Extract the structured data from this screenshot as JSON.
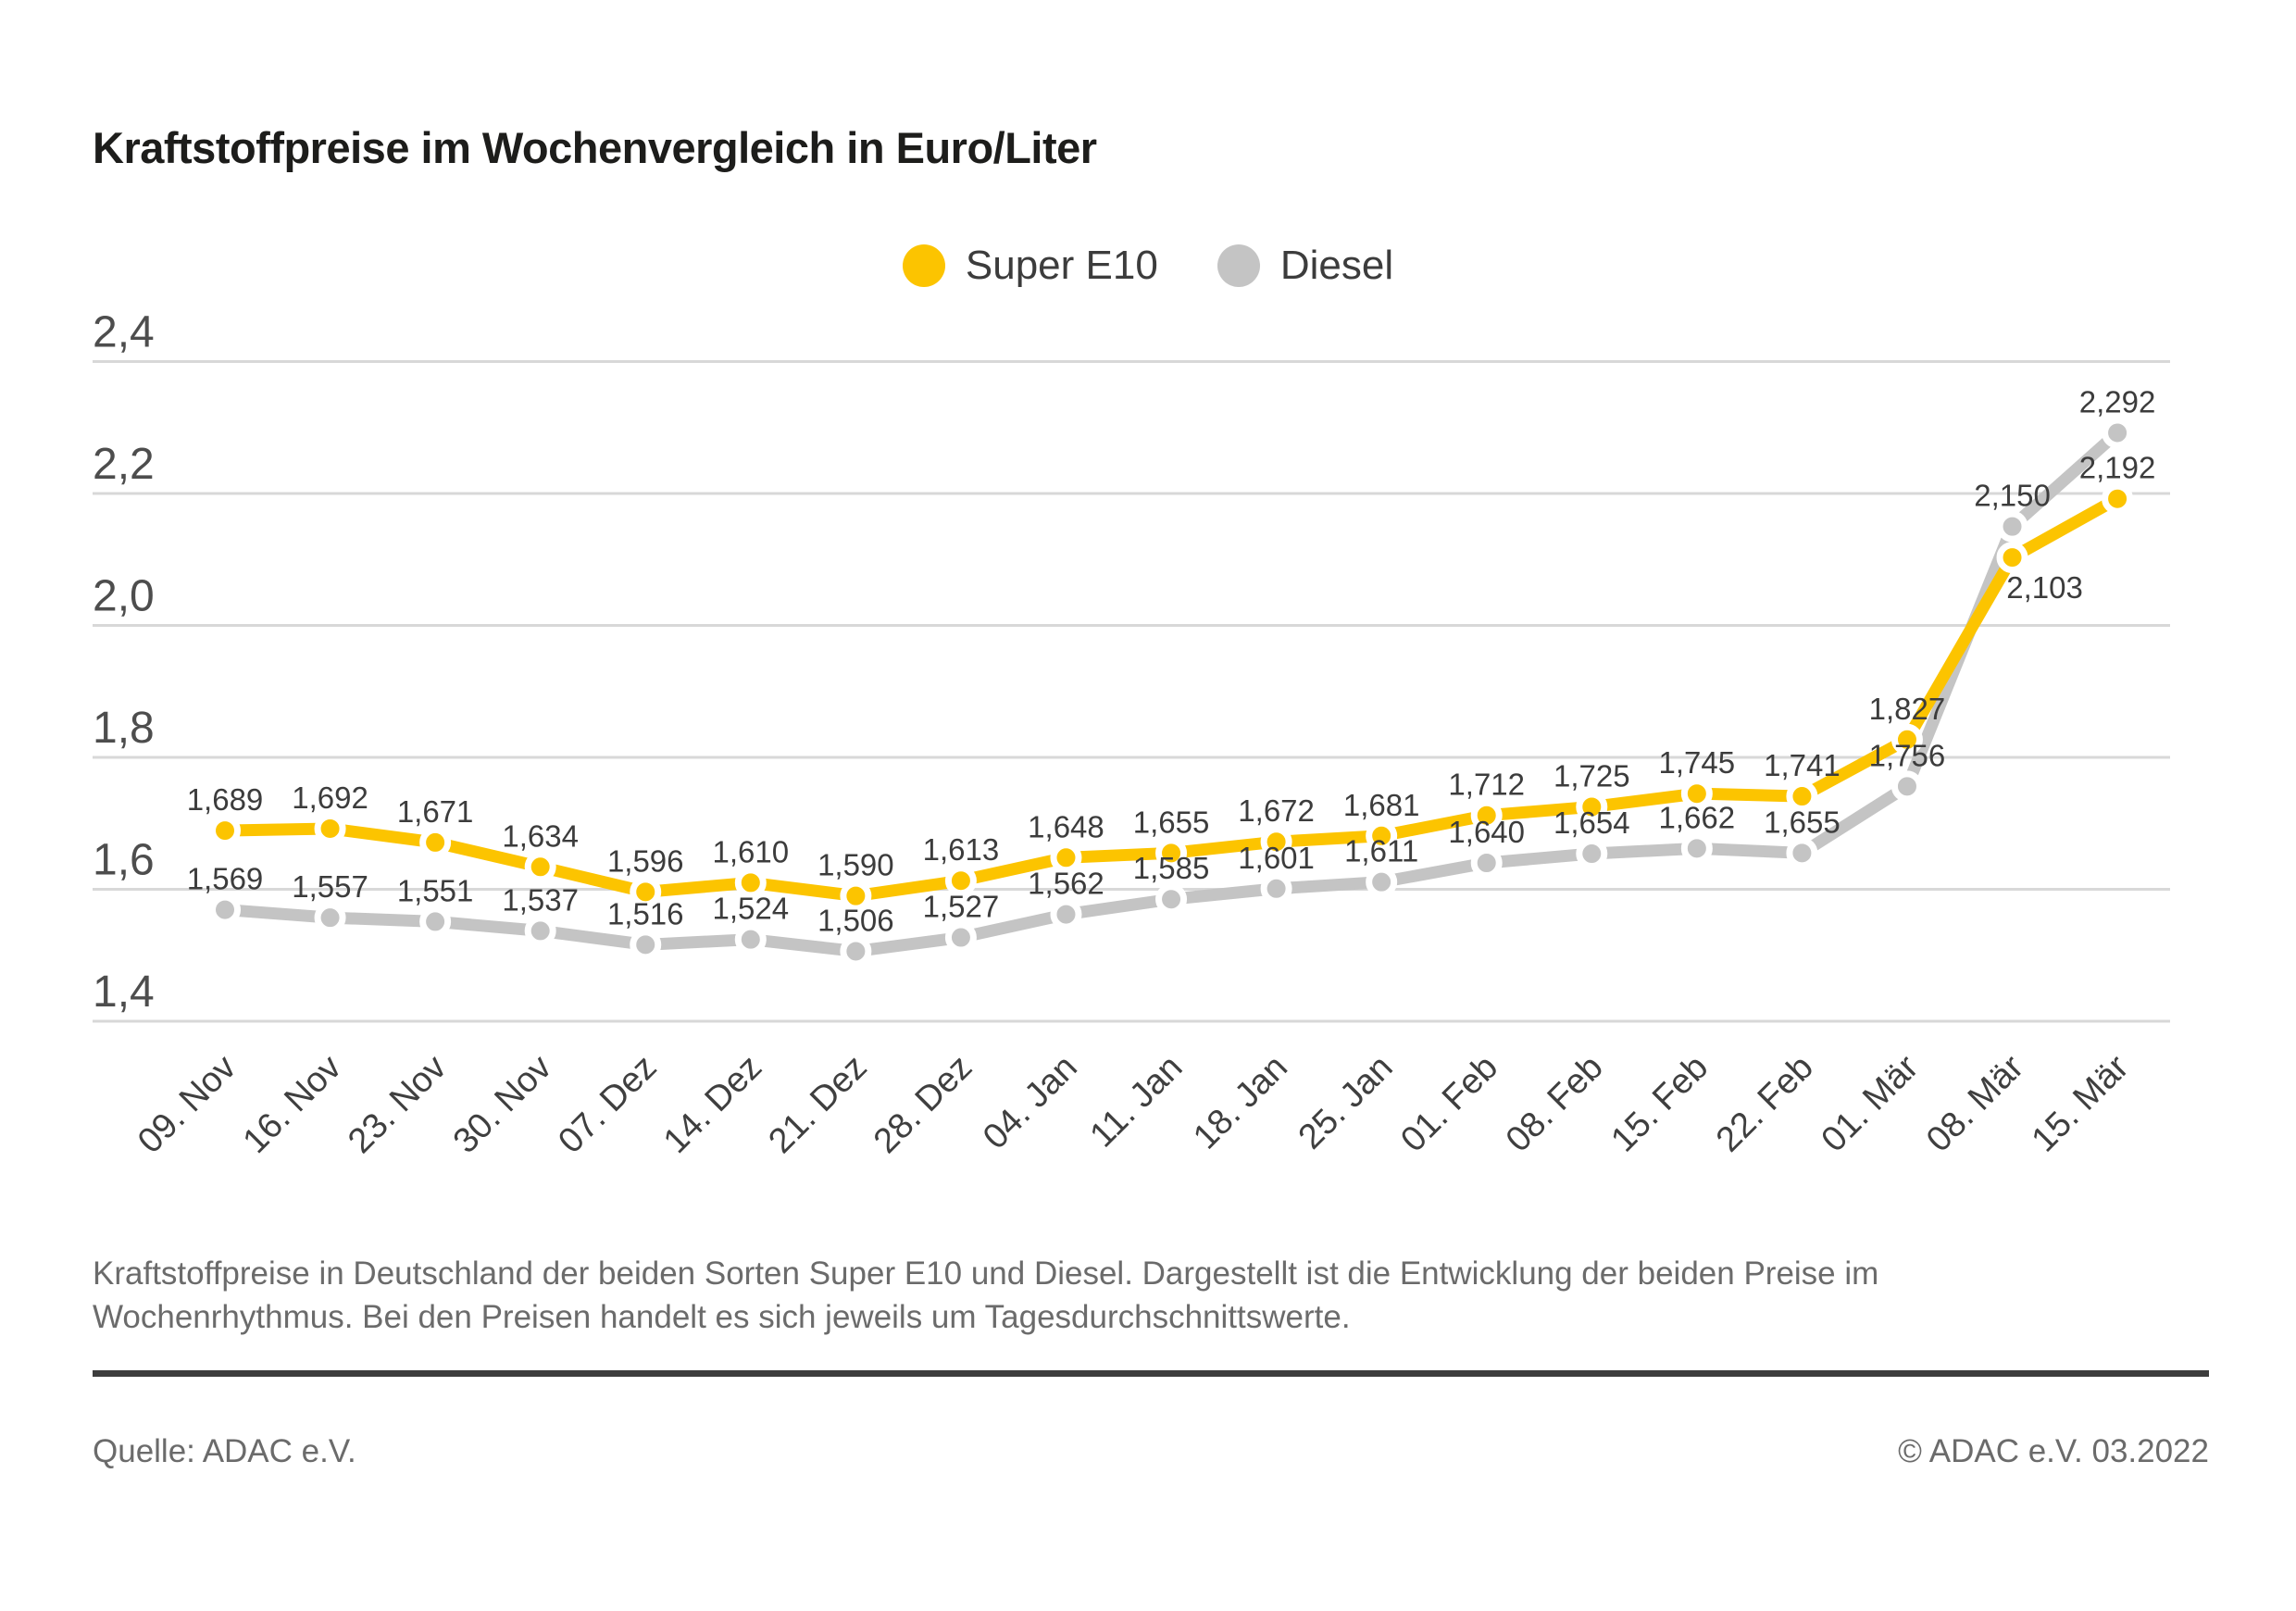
{
  "title": "Kraftstoffpreise im Wochenvergleich in Euro/Liter",
  "legend": {
    "items": [
      {
        "label": "Super E10",
        "color": "#fcc400"
      },
      {
        "label": "Diesel",
        "color": "#c4c4c4"
      }
    ]
  },
  "chart_data": {
    "type": "line",
    "title": "Kraftstoffpreise im Wochenvergleich in Euro/Liter",
    "categories": [
      "09. Nov",
      "16. Nov",
      "23. Nov",
      "30. Nov",
      "07. Dez",
      "14. Dez",
      "21. Dez",
      "28. Dez",
      "04. Jan",
      "11. Jan",
      "18. Jan",
      "25. Jan",
      "01. Feb",
      "08. Feb",
      "15. Feb",
      "22. Feb",
      "01. Mär",
      "08. Mär",
      "15. Mär"
    ],
    "series": [
      {
        "name": "Super E10",
        "color": "#fcc400",
        "values": [
          1.689,
          1.692,
          1.671,
          1.634,
          1.596,
          1.61,
          1.59,
          1.613,
          1.648,
          1.655,
          1.672,
          1.681,
          1.712,
          1.725,
          1.745,
          1.741,
          1.827,
          2.103,
          2.192
        ]
      },
      {
        "name": "Diesel",
        "color": "#c4c4c4",
        "values": [
          1.569,
          1.557,
          1.551,
          1.537,
          1.516,
          1.524,
          1.506,
          1.527,
          1.562,
          1.585,
          1.601,
          1.611,
          1.64,
          1.654,
          1.662,
          1.655,
          1.756,
          2.15,
          2.292
        ]
      }
    ],
    "xlabel": "",
    "ylabel": "",
    "unit": "Euro/Liter",
    "ylim": [
      1.4,
      2.4
    ],
    "yticks": [
      2.4,
      2.2,
      2.0,
      1.8,
      1.6,
      1.4
    ],
    "grid": true,
    "legend_position": "top-center",
    "decimal_separator": ",",
    "value_decimals": 3,
    "gridline_color": "#d8d8d8"
  },
  "footer": {
    "note": "Kraftstoffpreise in Deutschland der beiden Sorten Super E10 und Diesel. Dargestellt ist die Entwicklung der beiden Preise im Wochenrhythmus. Bei den Preisen handelt es sich jeweils um Tagesdurchschnittswerte."
  },
  "source": {
    "label": "Quelle: ADAC e.V.",
    "copyright": "© ADAC e.V. 03.2022"
  }
}
